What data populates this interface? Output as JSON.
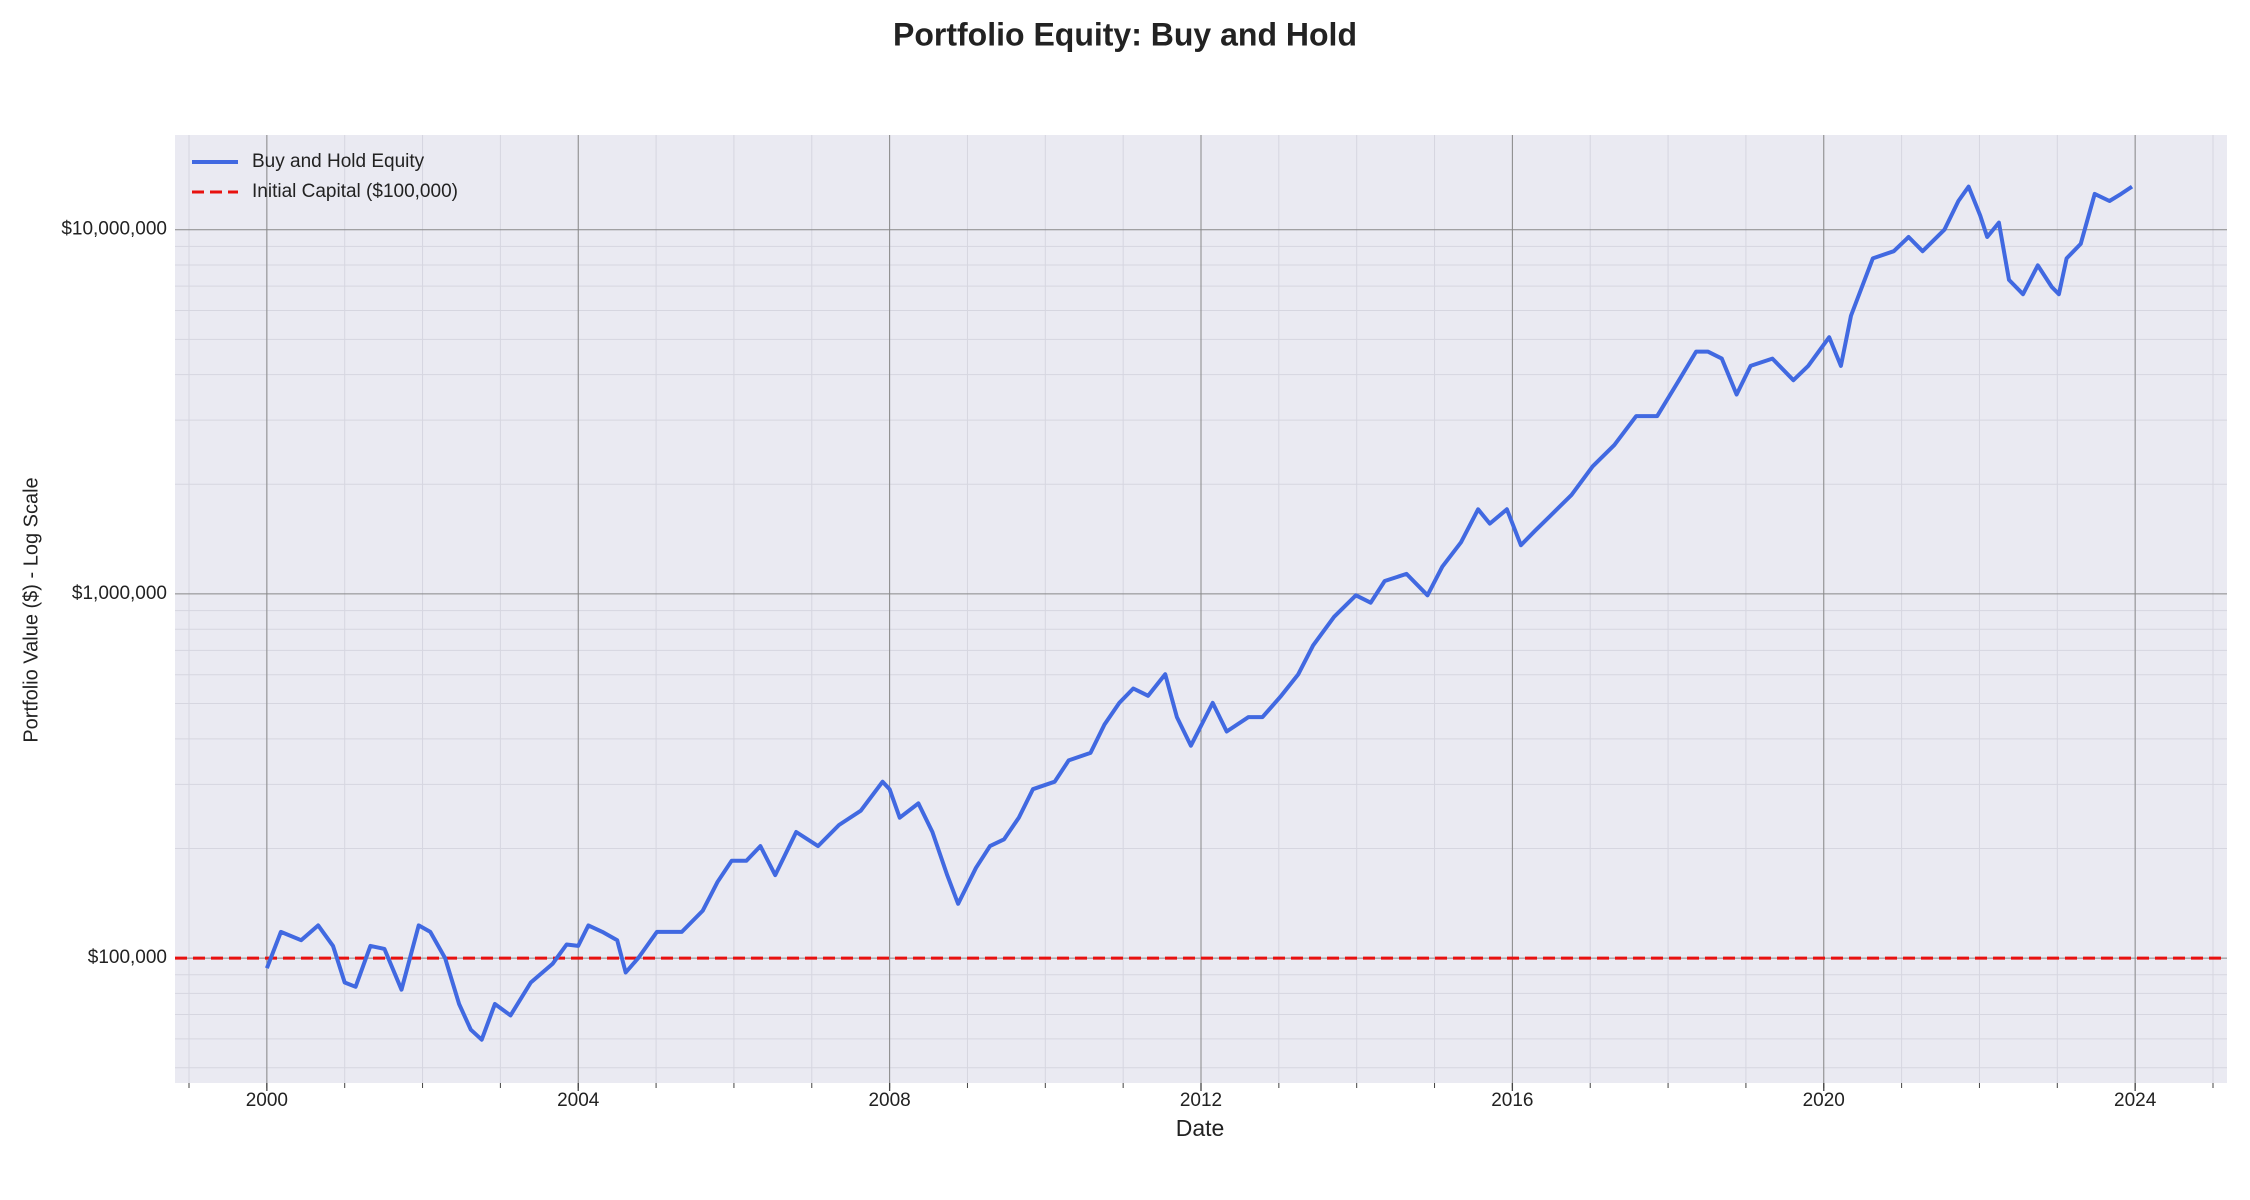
{
  "chart_data": {
    "type": "line",
    "title": "Portfolio Equity: Buy and Hold",
    "xlabel": "Date",
    "ylabel": "Portfolio Value ($) - Log Scale",
    "log_y": true,
    "grid": true,
    "minor_grid": true,
    "legend": "upper left",
    "xlim": [
      1998.82,
      2025.18
    ],
    "xticks": [
      2000,
      2004,
      2008,
      2012,
      2016,
      2020,
      2024
    ],
    "ylim": [
      45400,
      18200000
    ],
    "yticks": [
      {
        "value": 100000,
        "label": "$100,000"
      },
      {
        "value": 1000000,
        "label": "$1,000,000"
      },
      {
        "value": 10000000,
        "label": "$10,000,000"
      }
    ],
    "hline": {
      "name": "Initial Capital ($100,000)",
      "value": 100000,
      "color": "#e8110f"
    },
    "x": [
      2000.0,
      2000.18,
      2000.44,
      2000.66,
      2000.85,
      2001.0,
      2001.14,
      2001.33,
      2001.51,
      2001.73,
      2001.95,
      2002.1,
      2002.29,
      2002.47,
      2002.62,
      2002.76,
      2002.93,
      2003.13,
      2003.39,
      2003.67,
      2003.85,
      2004.0,
      2004.13,
      2004.31,
      2004.5,
      2004.61,
      2004.77,
      2005.01,
      2005.33,
      2005.6,
      2005.79,
      2005.97,
      2006.16,
      2006.34,
      2006.53,
      2006.8,
      2007.08,
      2007.35,
      2007.63,
      2007.91,
      2008.0,
      2008.13,
      2008.37,
      2008.55,
      2008.74,
      2008.88,
      2009.11,
      2009.29,
      2009.47,
      2009.66,
      2009.84,
      2010.12,
      2010.3,
      2010.58,
      2010.76,
      2010.95,
      2011.13,
      2011.32,
      2011.54,
      2011.69,
      2011.87,
      2012.15,
      2012.33,
      2012.61,
      2012.79,
      2013.03,
      2013.25,
      2013.44,
      2013.71,
      2013.99,
      2014.18,
      2014.36,
      2014.64,
      2014.91,
      2015.1,
      2015.34,
      2015.56,
      2015.71,
      2015.93,
      2016.11,
      2016.29,
      2016.48,
      2016.76,
      2017.03,
      2017.31,
      2017.59,
      2017.86,
      2018.14,
      2018.36,
      2018.51,
      2018.69,
      2018.88,
      2019.06,
      2019.34,
      2019.61,
      2019.8,
      2020.07,
      2020.22,
      2020.35,
      2020.63,
      2020.9,
      2021.09,
      2021.27,
      2021.55,
      2021.73,
      2021.86,
      2022.01,
      2022.1,
      2022.25,
      2022.38,
      2022.56,
      2022.75,
      2022.93,
      2023.02,
      2023.12,
      2023.3,
      2023.48,
      2023.67,
      2023.82,
      2023.96
    ],
    "series": [
      {
        "name": "Buy and Hold Equity",
        "color": "#4169e1",
        "values": [
          93800,
          118000,
          112000,
          123000,
          108000,
          85700,
          83400,
          108000,
          106000,
          81900,
          123000,
          118000,
          100000,
          74800,
          63600,
          59700,
          74800,
          69600,
          85700,
          96400,
          109000,
          108000,
          123000,
          118000,
          112000,
          91300,
          100000,
          118000,
          118000,
          135000,
          162000,
          185000,
          185000,
          203000,
          169000,
          222000,
          203000,
          232000,
          254000,
          305000,
          291000,
          243000,
          266000,
          222000,
          169000,
          141000,
          177000,
          203000,
          212000,
          243000,
          291000,
          305000,
          349000,
          366000,
          438000,
          502000,
          550000,
          525000,
          602000,
          459000,
          383000,
          502000,
          419000,
          459000,
          459000,
          525000,
          602000,
          722000,
          865000,
          991000,
          946000,
          1085000,
          1135000,
          991000,
          1188000,
          1386000,
          1707000,
          1560000,
          1707000,
          1361000,
          1490000,
          1632000,
          1870000,
          2239000,
          2566000,
          3077000,
          3077000,
          3861000,
          4626000,
          4626000,
          4426000,
          3527000,
          4227000,
          4426000,
          3861000,
          4227000,
          5069000,
          4227000,
          5806000,
          8340000,
          8730000,
          9550000,
          8730000,
          10000000,
          11990000,
          13130000,
          10940000,
          9550000,
          10460000,
          7280000,
          6650000,
          7980000,
          6960000,
          6650000,
          8340000,
          9140000,
          12540000,
          11990000,
          12540000,
          13130000
        ]
      }
    ]
  }
}
